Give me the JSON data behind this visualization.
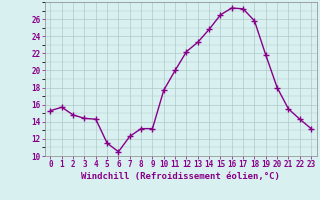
{
  "x": [
    0,
    1,
    2,
    3,
    4,
    5,
    6,
    7,
    8,
    9,
    10,
    11,
    12,
    13,
    14,
    15,
    16,
    17,
    18,
    19,
    20,
    21,
    22,
    23
  ],
  "y": [
    15.3,
    15.7,
    14.8,
    14.4,
    14.3,
    11.5,
    10.5,
    12.3,
    13.2,
    13.2,
    17.7,
    20.0,
    22.2,
    23.3,
    24.8,
    26.5,
    27.3,
    27.2,
    25.8,
    21.8,
    18.0,
    15.5,
    14.3,
    13.2
  ],
  "line_color": "#880088",
  "marker": "+",
  "markersize": 4,
  "linewidth": 1.0,
  "markeredgewidth": 1.0,
  "xlabel": "Windchill (Refroidissement éolien,°C)",
  "xlabel_fontsize": 6.5,
  "ylim": [
    10,
    28
  ],
  "xlim": [
    -0.5,
    23.5
  ],
  "yticks": [
    10,
    12,
    14,
    16,
    18,
    20,
    22,
    24,
    26
  ],
  "xtick_labels": [
    "0",
    "1",
    "2",
    "3",
    "4",
    "5",
    "6",
    "7",
    "8",
    "9",
    "10",
    "11",
    "12",
    "13",
    "14",
    "15",
    "16",
    "17",
    "18",
    "19",
    "20",
    "21",
    "22",
    "23"
  ],
  "background_color": "#d8f0f0",
  "grid_color": "#b0c8c8",
  "tick_fontsize": 5.5,
  "tick_label_color": "#880088"
}
